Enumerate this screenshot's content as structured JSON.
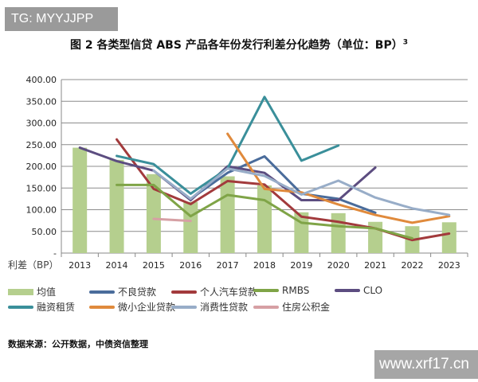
{
  "watermark_top": "TG: MYYJJPP",
  "watermark_bottom": "www.xrf17.cn",
  "title": "图 2 各类型信贷 ABS 产品各年份发行利差分化趋势（单位：BP）",
  "title_sup": "3",
  "source": "数据来源：公开数据，中债资信整理",
  "chart_data": {
    "type": "bar+line",
    "title": "图 2 各类型信贷 ABS 产品各年份发行利差分化趋势（单位：BP）",
    "ylabel": "利差（BP）",
    "categories": [
      "2013",
      "2014",
      "2015",
      "2016",
      "2017",
      "2018",
      "2019",
      "2020",
      "2021",
      "2022",
      "2023"
    ],
    "ylim": [
      0,
      400
    ],
    "yticks": [
      "-",
      "50.00",
      "100.00",
      "150.00",
      "200.00",
      "250.00",
      "300.00",
      "350.00",
      "400.00"
    ],
    "grid": true,
    "legend_position": "bottom",
    "bar": {
      "name": "均值",
      "color": "#b5cf8e",
      "values": [
        243,
        215,
        182,
        118,
        177,
        156,
        94,
        92,
        72,
        62,
        71
      ]
    },
    "series": [
      {
        "name": "不良贷款",
        "color": "#4a6c9b",
        "values": [
          null,
          null,
          null,
          125,
          185,
          223,
          137,
          125,
          93,
          null,
          null
        ]
      },
      {
        "name": "个人汽车贷款",
        "color": "#a23a3c",
        "values": [
          null,
          262,
          148,
          113,
          166,
          158,
          84,
          72,
          57,
          30,
          45
        ]
      },
      {
        "name": "RMBS",
        "color": "#7fa447",
        "values": [
          null,
          157,
          157,
          85,
          134,
          122,
          70,
          62,
          57,
          34,
          null
        ]
      },
      {
        "name": "CLO",
        "color": "#5c4d80",
        "values": [
          243,
          212,
          190,
          122,
          200,
          185,
          122,
          122,
          197,
          null,
          null
        ]
      },
      {
        "name": "融资租赁",
        "color": "#3a8f9a",
        "values": [
          null,
          224,
          205,
          137,
          195,
          360,
          213,
          248,
          null,
          null,
          null
        ]
      },
      {
        "name": "微小企业贷款",
        "color": "#e08a3c",
        "values": [
          null,
          null,
          null,
          null,
          275,
          148,
          140,
          112,
          88,
          70,
          85
        ]
      },
      {
        "name": "消费性贷款",
        "color": "#98adc8",
        "values": [
          null,
          null,
          190,
          125,
          195,
          178,
          135,
          167,
          128,
          103,
          88
        ]
      },
      {
        "name": "住房公积金",
        "color": "#d6a0a4",
        "values": [
          null,
          null,
          79,
          74,
          null,
          null,
          null,
          null,
          null,
          null,
          null
        ]
      }
    ]
  }
}
